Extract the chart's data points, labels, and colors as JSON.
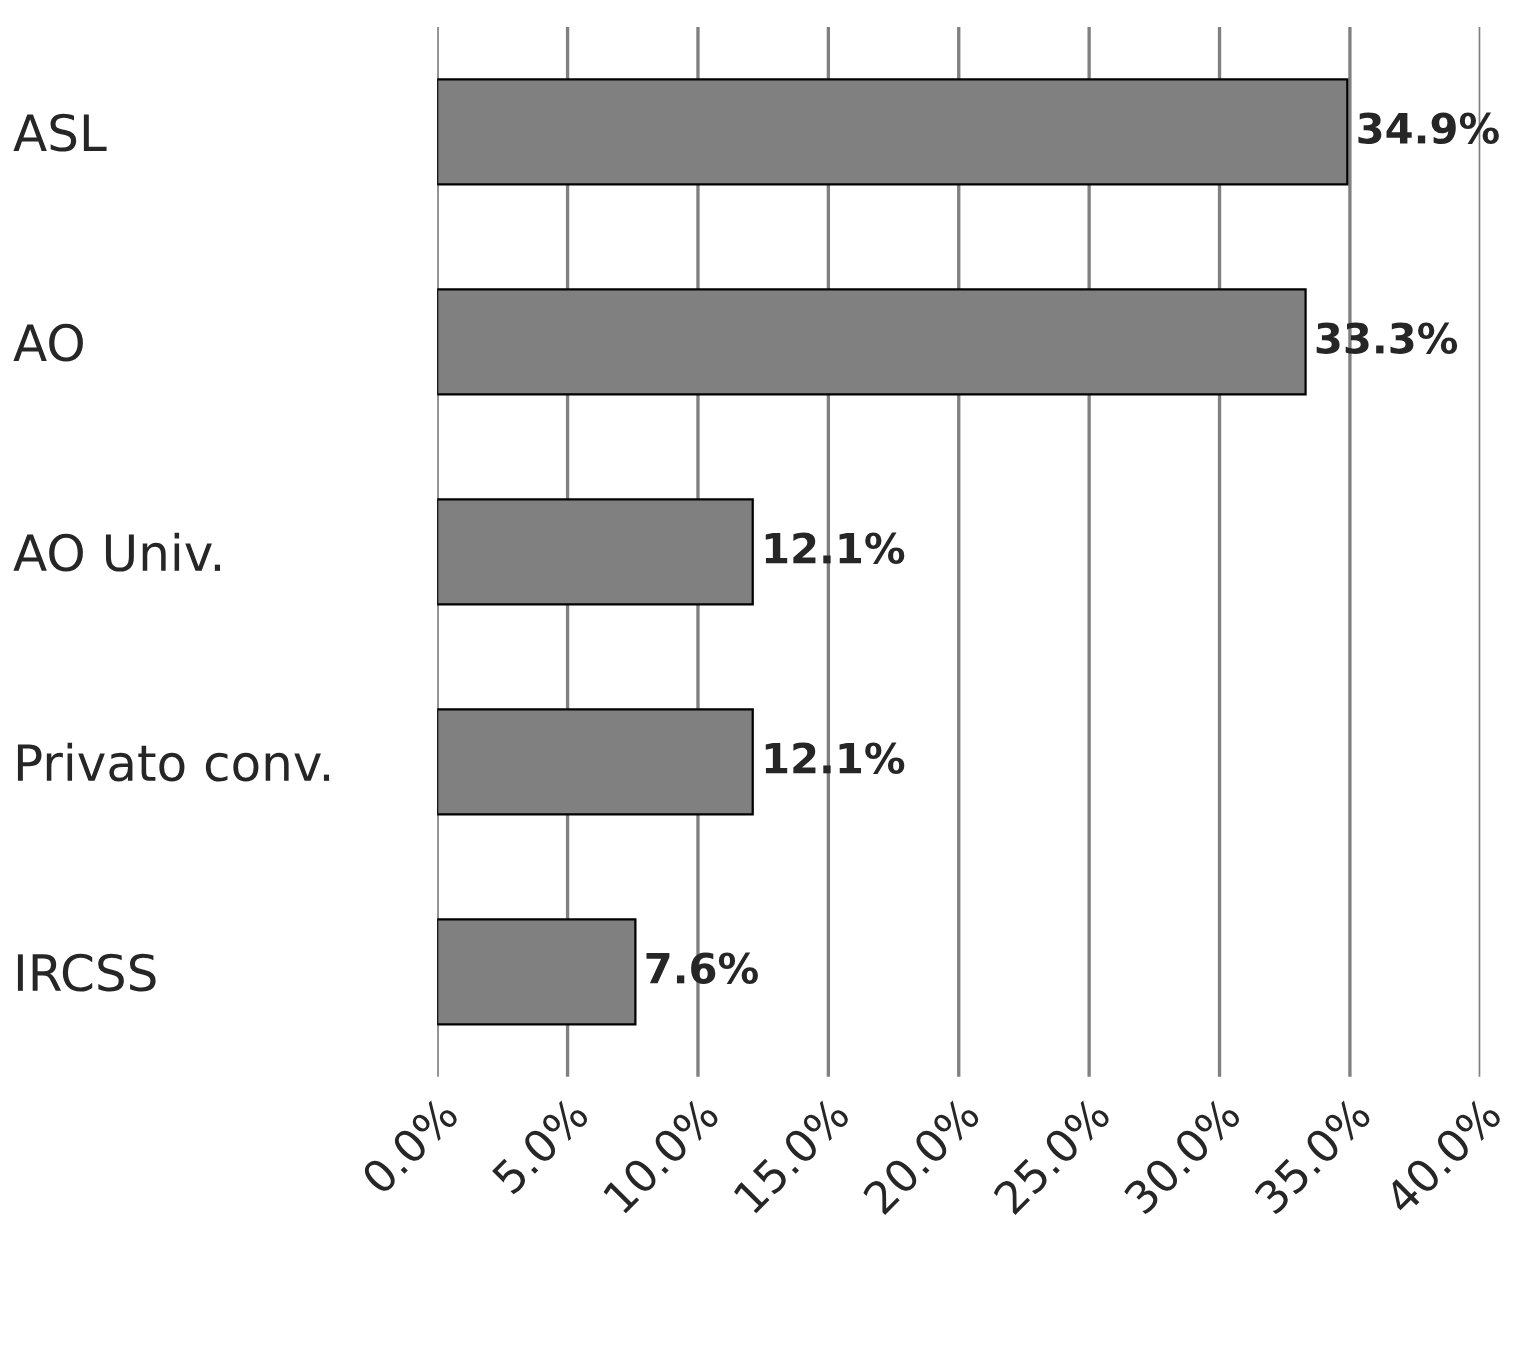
{
  "chart_data": {
    "type": "bar",
    "orientation": "horizontal",
    "categories": [
      "ASL",
      "AO",
      "AO Univ.",
      "Privato conv.",
      "IRCSS"
    ],
    "values": [
      34.9,
      33.3,
      12.1,
      12.1,
      7.6
    ],
    "value_labels": [
      "34.9%",
      "33.3%",
      "12.1%",
      "12.1%",
      "7.6%"
    ],
    "color": "#808080",
    "xlim": [
      0,
      40
    ],
    "xticks": [
      {
        "value": 0,
        "label": "0.0%"
      },
      {
        "value": 5,
        "label": "5.0%"
      },
      {
        "value": 10,
        "label": "10.0%"
      },
      {
        "value": 15,
        "label": "15.0%"
      },
      {
        "value": 20,
        "label": "20.0%"
      },
      {
        "value": 25,
        "label": "25.0%"
      },
      {
        "value": 30,
        "label": "30.0%"
      },
      {
        "value": 35,
        "label": "35.0%"
      },
      {
        "value": 40,
        "label": "40.0%"
      }
    ],
    "grid": "x"
  }
}
